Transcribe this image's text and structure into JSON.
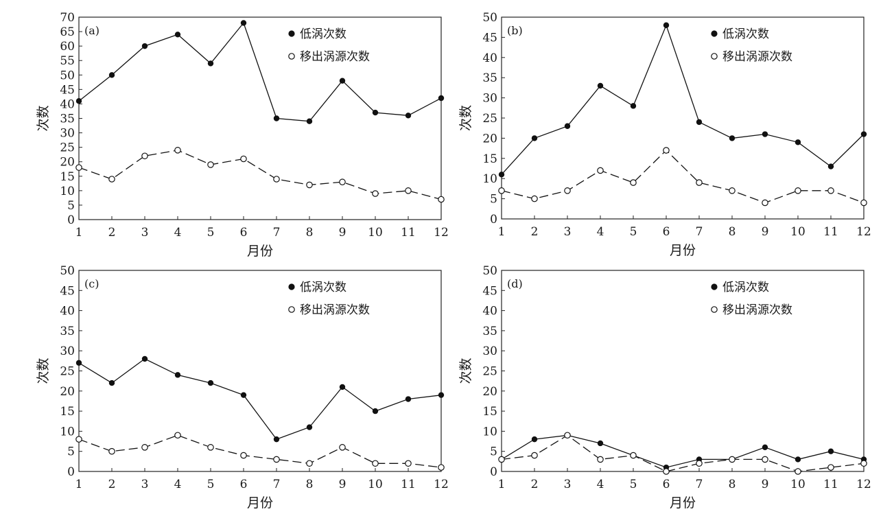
{
  "chart_data": [
    {
      "type": "line",
      "panel_label": "(a)",
      "xlabel": "月份",
      "ylabel": "次数",
      "categories": [
        "1",
        "2",
        "3",
        "4",
        "5",
        "6",
        "7",
        "8",
        "9",
        "10",
        "11",
        "12"
      ],
      "ylim": [
        0,
        70
      ],
      "yticks": [
        0,
        5,
        10,
        15,
        20,
        25,
        30,
        35,
        40,
        45,
        50,
        55,
        60,
        65,
        70
      ],
      "legend_position": "top-right",
      "series": [
        {
          "name": "低涡次数",
          "marker": "filled-circle",
          "line": "solid",
          "values": [
            41,
            50,
            60,
            64,
            54,
            68,
            35,
            34,
            48,
            37,
            36,
            42
          ]
        },
        {
          "name": "移出涡源次数",
          "marker": "open-circle",
          "line": "dashed",
          "values": [
            18,
            14,
            22,
            24,
            19,
            21,
            14,
            12,
            13,
            9,
            10,
            7
          ]
        }
      ]
    },
    {
      "type": "line",
      "panel_label": "(b)",
      "xlabel": "月份",
      "ylabel": "次数",
      "categories": [
        "1",
        "2",
        "3",
        "4",
        "5",
        "6",
        "7",
        "8",
        "9",
        "10",
        "11",
        "12"
      ],
      "ylim": [
        0,
        50
      ],
      "yticks": [
        0,
        5,
        10,
        15,
        20,
        25,
        30,
        35,
        40,
        45,
        50
      ],
      "legend_position": "top-right",
      "series": [
        {
          "name": "低涡次数",
          "marker": "filled-circle",
          "line": "solid",
          "values": [
            11,
            20,
            23,
            33,
            28,
            48,
            24,
            20,
            21,
            19,
            13,
            21
          ]
        },
        {
          "name": "移出涡源次数",
          "marker": "open-circle",
          "line": "dashed",
          "values": [
            7,
            5,
            7,
            12,
            9,
            17,
            9,
            7,
            4,
            7,
            7,
            4
          ]
        }
      ]
    },
    {
      "type": "line",
      "panel_label": "(c)",
      "xlabel": "月份",
      "ylabel": "次数",
      "categories": [
        "1",
        "2",
        "3",
        "4",
        "5",
        "6",
        "7",
        "8",
        "9",
        "10",
        "11",
        "12"
      ],
      "ylim": [
        0,
        50
      ],
      "yticks": [
        0,
        5,
        10,
        15,
        20,
        25,
        30,
        35,
        40,
        45,
        50
      ],
      "legend_position": "top-right",
      "series": [
        {
          "name": "低涡次数",
          "marker": "filled-circle",
          "line": "solid",
          "values": [
            27,
            22,
            28,
            24,
            22,
            19,
            8,
            11,
            21,
            15,
            18,
            19
          ]
        },
        {
          "name": "移出涡源次数",
          "marker": "open-circle",
          "line": "dashed",
          "values": [
            8,
            5,
            6,
            9,
            6,
            4,
            3,
            2,
            6,
            2,
            2,
            1
          ]
        }
      ]
    },
    {
      "type": "line",
      "panel_label": "(d)",
      "xlabel": "月份",
      "ylabel": "次数",
      "categories": [
        "1",
        "2",
        "3",
        "4",
        "5",
        "6",
        "7",
        "8",
        "9",
        "10",
        "11",
        "12"
      ],
      "ylim": [
        0,
        50
      ],
      "yticks": [
        0,
        5,
        10,
        15,
        20,
        25,
        30,
        35,
        40,
        45,
        50
      ],
      "legend_position": "top-right",
      "series": [
        {
          "name": "低涡次数",
          "marker": "filled-circle",
          "line": "solid",
          "values": [
            3,
            8,
            9,
            7,
            4,
            1,
            3,
            3,
            6,
            3,
            5,
            3
          ]
        },
        {
          "name": "移出涡源次数",
          "marker": "open-circle",
          "line": "dashed",
          "values": [
            3,
            4,
            9,
            3,
            4,
            0,
            2,
            3,
            3,
            0,
            1,
            2
          ]
        }
      ]
    }
  ]
}
